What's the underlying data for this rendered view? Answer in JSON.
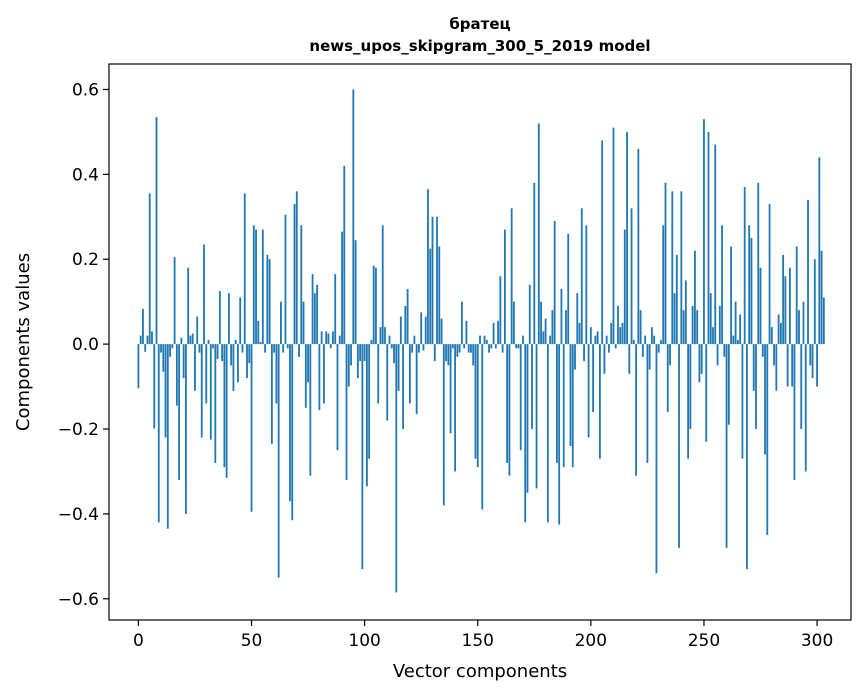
{
  "chart_data": {
    "type": "bar",
    "title_lines": [
      "братец",
      "news_upos_skipgram_300_5_2019 model"
    ],
    "xlabel": "Vector components",
    "ylabel": "Components values",
    "xlim": [
      -13,
      315
    ],
    "ylim": [
      -0.65,
      0.66
    ],
    "xticks": [
      0,
      50,
      100,
      150,
      200,
      250,
      300
    ],
    "xtick_labels": [
      "0",
      "50",
      "100",
      "150",
      "200",
      "250",
      "300"
    ],
    "yticks": [
      -0.6,
      -0.4,
      -0.2,
      0.0,
      0.2,
      0.4,
      0.6
    ],
    "ytick_labels": [
      "−0.6",
      "−0.4",
      "−0.2",
      "0.0",
      "0.2",
      "0.4",
      "0.6"
    ],
    "bar_color": "#1f77b4",
    "grid": false,
    "values": [
      -0.104,
      0.02,
      0.083,
      -0.018,
      0.02,
      0.355,
      0.03,
      -0.199,
      0.535,
      -0.42,
      -0.02,
      -0.065,
      -0.22,
      -0.435,
      -0.03,
      -0.01,
      0.205,
      -0.145,
      -0.32,
      0.015,
      -0.08,
      -0.4,
      0.18,
      0.02,
      0.025,
      -0.11,
      0.065,
      -0.02,
      -0.22,
      0.235,
      -0.14,
      0.01,
      -0.225,
      -0.01,
      -0.28,
      -0.035,
      0.125,
      -0.04,
      -0.29,
      -0.315,
      0.12,
      -0.05,
      -0.11,
      0.01,
      -0.09,
      0.11,
      -0.02,
      0.355,
      -0.08,
      -0.045,
      -0.395,
      0.28,
      0.27,
      0.055,
      0.005,
      0.27,
      -0.02,
      0.21,
      0.2,
      -0.235,
      -0.02,
      -0.14,
      -0.55,
      0.1,
      -0.02,
      0.305,
      -0.01,
      -0.37,
      -0.415,
      0.33,
      0.36,
      -0.03,
      0.28,
      0.1,
      -0.15,
      -0.09,
      -0.31,
      0.165,
      0.12,
      0.14,
      -0.155,
      0.03,
      -0.14,
      0.03,
      0.025,
      -0.01,
      0.03,
      0.165,
      -0.25,
      0.02,
      0.265,
      0.42,
      -0.32,
      -0.1,
      -0.05,
      0.6,
      0.245,
      -0.08,
      -0.04,
      -0.53,
      -0.04,
      -0.335,
      -0.27,
      0.01,
      0.185,
      0.18,
      -0.14,
      0.04,
      0.28,
      0.04,
      -0.18,
      0.02,
      -0.01,
      -0.045,
      -0.585,
      -0.11,
      0.065,
      -0.2,
      0.09,
      0.13,
      -0.14,
      -0.02,
      0.02,
      -0.165,
      -0.02,
      0.075,
      -0.015,
      0.065,
      0.365,
      0.225,
      0.3,
      -0.04,
      0.3,
      0.23,
      0.06,
      -0.38,
      -0.04,
      -0.05,
      -0.21,
      -0.01,
      -0.3,
      -0.03,
      -0.02,
      0.1,
      -0.01,
      0.055,
      -0.02,
      -0.02,
      -0.05,
      -0.27,
      -0.29,
      0.02,
      -0.39,
      0.02,
      0.01,
      -0.02,
      -0.01,
      0.05,
      -0.01,
      0.055,
      0.16,
      -0.02,
      0.27,
      -0.28,
      -0.31,
      0.32,
      0.1,
      -0.01,
      -0.01,
      -0.25,
      0.02,
      -0.42,
      -0.35,
      0.14,
      -0.2,
      0.38,
      -0.34,
      0.52,
      0.1,
      0.03,
      0.06,
      -0.42,
      0.02,
      0.08,
      0.29,
      -0.28,
      -0.425,
      0.13,
      -0.29,
      0.08,
      0.26,
      -0.24,
      -0.29,
      -0.06,
      0.12,
      0.05,
      0.32,
      -0.04,
      0.28,
      -0.22,
      0.04,
      -0.16,
      0.02,
      0.03,
      -0.27,
      0.48,
      -0.07,
      0.02,
      -0.02,
      0.05,
      0.51,
      -0.01,
      0.09,
      0.04,
      0.05,
      0.27,
      0.5,
      -0.07,
      0.32,
      0.01,
      -0.31,
      0.46,
      0.08,
      -0.03,
      0.02,
      -0.28,
      -0.06,
      0.04,
      0.02,
      -0.54,
      -0.02,
      0.01,
      0.28,
      0.38,
      -0.16,
      -0.05,
      0.36,
      0.12,
      0.21,
      -0.48,
      0.36,
      0.08,
      0.15,
      -0.27,
      -0.2,
      0.09,
      0.22,
      0.08,
      -0.09,
      -0.07,
      0.53,
      -0.23,
      0.5,
      0.12,
      0.04,
      0.47,
      -0.05,
      0.09,
      0.28,
      -0.03,
      -0.48,
      -0.19,
      0.23,
      0.02,
      0.1,
      0.01,
      0.07,
      -0.27,
      0.37,
      -0.53,
      0.28,
      0.25,
      -0.11,
      -0.2,
      0.38,
      0.18,
      -0.03,
      -0.26,
      -0.45,
      0.33,
      0.04,
      -0.05,
      -0.11,
      0.07,
      0.05,
      0.21,
      0.16,
      -0.1,
      0.18,
      -0.1,
      -0.32,
      0.23,
      0.08,
      -0.2,
      0.1,
      -0.3,
      0.34,
      -0.05,
      -0.08,
      0.2,
      -0.1,
      0.44,
      0.22,
      0.11
    ]
  }
}
